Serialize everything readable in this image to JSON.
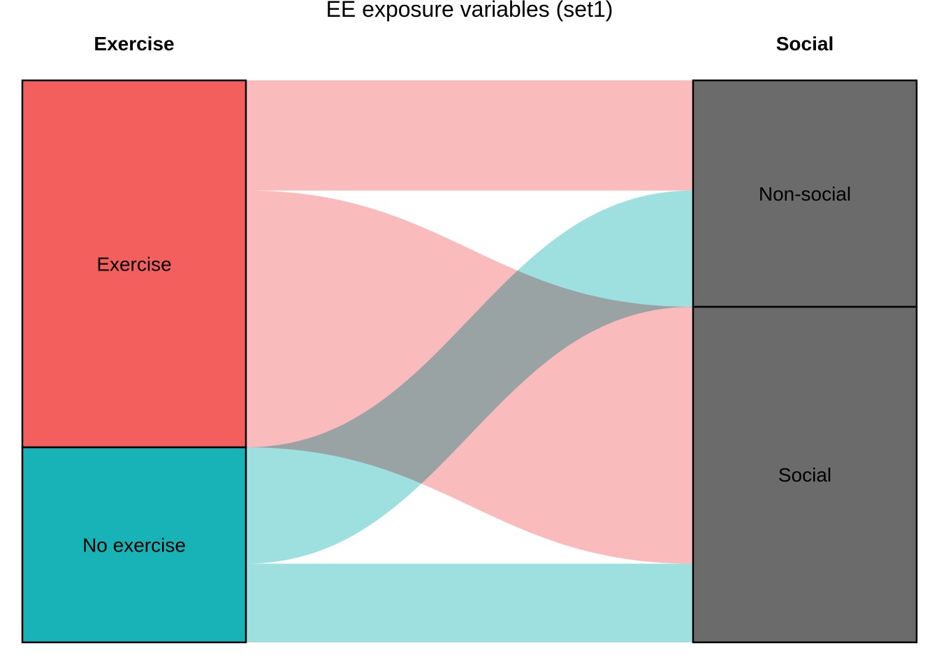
{
  "chart_data": {
    "type": "alluvial",
    "title": "EE exposure  variables (set1)",
    "axes": [
      {
        "label": "Exercise",
        "strata": [
          {
            "name": "Exercise",
            "value": 65.3,
            "color": "#F35F5C"
          },
          {
            "name": "No exercise",
            "value": 34.7,
            "color": "#18B3B7"
          }
        ]
      },
      {
        "label": "Social",
        "strata": [
          {
            "name": "Non-social",
            "value": 40.3,
            "color": "#6B6B6B"
          },
          {
            "name": "Social",
            "value": 59.7,
            "color": "#6B6B6B"
          }
        ]
      }
    ],
    "flows": [
      {
        "from": "Exercise",
        "to": "Non-social",
        "value": 19.6,
        "color": "#F8AFAF"
      },
      {
        "from": "Exercise",
        "to": "Social",
        "value": 45.7,
        "color": "#F8AFAF"
      },
      {
        "from": "No exercise",
        "to": "Non-social",
        "value": 20.7,
        "color": "#8DD9DB"
      },
      {
        "from": "No exercise",
        "to": "Social",
        "value": 14.0,
        "color": "#8DD9DB"
      }
    ],
    "overlap_color": "#88B1B1"
  }
}
